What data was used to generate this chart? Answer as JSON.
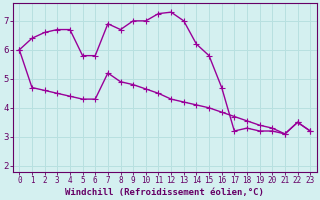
{
  "xlabel": "Windchill (Refroidissement éolien,°C)",
  "line1_x": [
    0,
    1,
    2,
    3,
    4,
    5,
    6,
    7,
    8,
    9,
    10,
    11,
    12,
    13,
    14,
    15,
    16,
    17,
    18,
    19,
    20,
    21,
    22,
    23
  ],
  "line1_y": [
    6.0,
    6.4,
    6.6,
    6.7,
    6.7,
    5.8,
    5.8,
    6.9,
    6.7,
    7.0,
    7.0,
    7.25,
    7.3,
    7.0,
    6.2,
    5.8,
    4.7,
    3.2,
    3.3,
    3.2,
    3.2,
    3.1,
    3.5,
    3.2
  ],
  "line2_x": [
    0,
    1,
    2,
    3,
    4,
    5,
    6,
    7,
    8,
    9,
    10,
    11,
    12,
    13,
    14,
    15,
    16,
    17,
    18,
    19,
    20,
    21,
    22,
    23
  ],
  "line2_y": [
    6.0,
    4.7,
    4.6,
    4.5,
    4.4,
    4.3,
    4.3,
    5.2,
    4.9,
    4.8,
    4.65,
    4.5,
    4.3,
    4.2,
    4.1,
    4.0,
    3.85,
    3.7,
    3.55,
    3.4,
    3.3,
    3.1,
    3.5,
    3.2
  ],
  "line_color": "#990099",
  "bg_color": "#d4f0f0",
  "grid_color": "#b8e0e0",
  "axis_color": "#660066",
  "spine_color": "#660066",
  "xlim": [
    -0.5,
    23.5
  ],
  "ylim": [
    1.8,
    7.6
  ],
  "xticks": [
    0,
    1,
    2,
    3,
    4,
    5,
    6,
    7,
    8,
    9,
    10,
    11,
    12,
    13,
    14,
    15,
    16,
    17,
    18,
    19,
    20,
    21,
    22,
    23
  ],
  "yticks": [
    2,
    3,
    4,
    5,
    6,
    7
  ],
  "marker_size": 2.5,
  "line_width": 1.0,
  "tick_fontsize": 5.5,
  "xlabel_fontsize": 6.5
}
